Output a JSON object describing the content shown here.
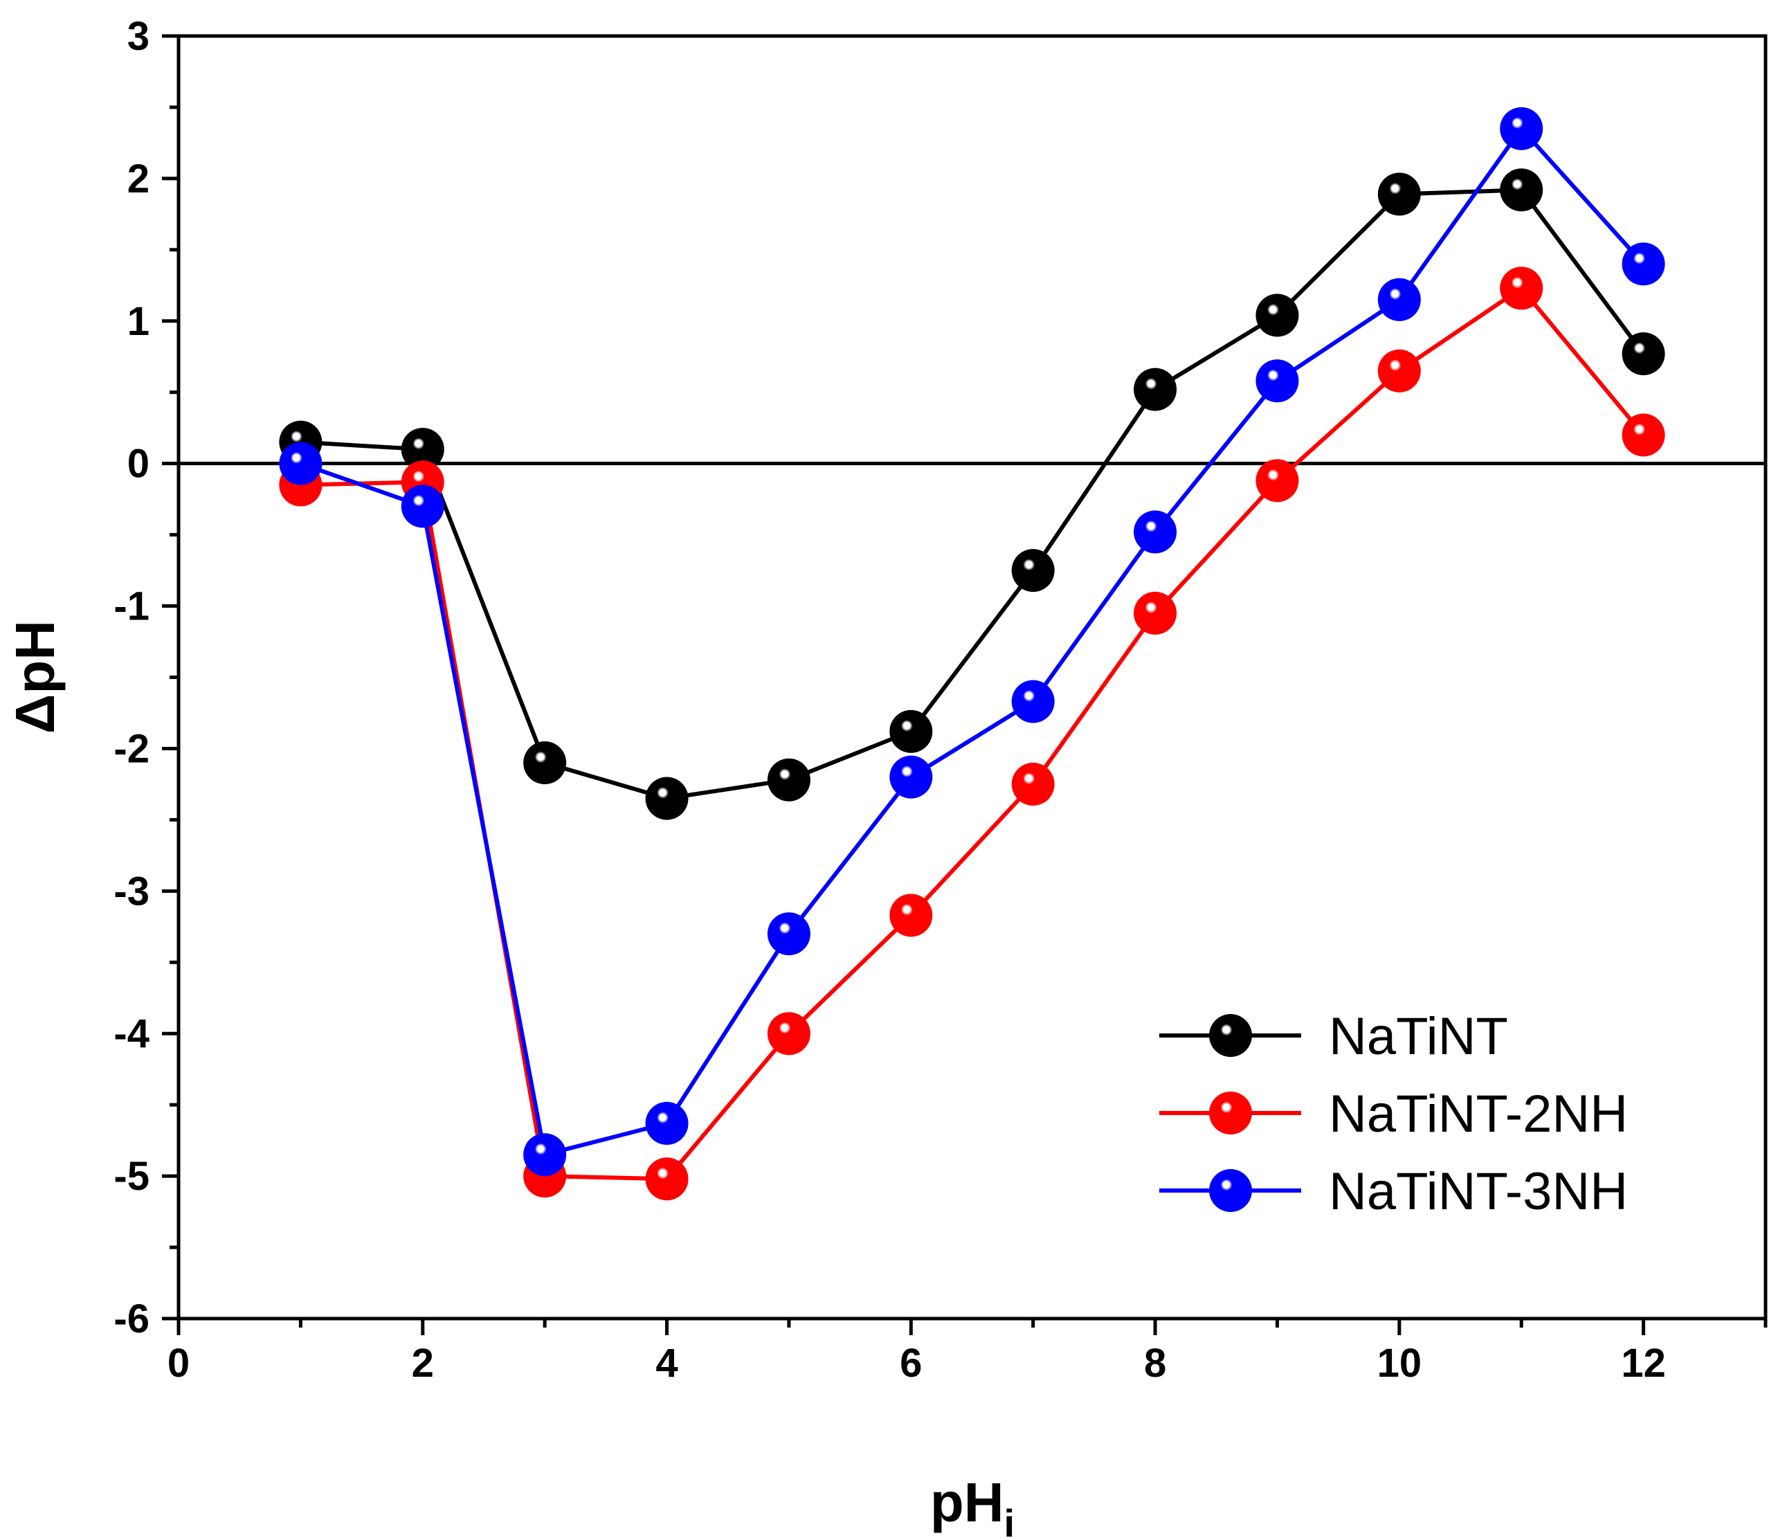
{
  "chart_data": {
    "type": "line",
    "title": "",
    "xlabel": "pH",
    "xlabel_subscript": "i",
    "ylabel": "ΔpH",
    "xlim": [
      0,
      13
    ],
    "ylim": [
      -6,
      3
    ],
    "xticks": [
      0,
      2,
      4,
      6,
      8,
      10,
      12
    ],
    "xtick_labels": [
      "0",
      "2",
      "4",
      "6",
      "8",
      "10",
      "12"
    ],
    "yticks": [
      3,
      2,
      1,
      0,
      -1,
      -2,
      -3,
      -4,
      -5,
      -6
    ],
    "ytick_labels": [
      "3",
      "2",
      "1",
      "0",
      "-1",
      "-2",
      "-3",
      "-4",
      "-5",
      "-6"
    ],
    "reference_line_y": 0,
    "grid": false,
    "legend_position": "bottom-right",
    "x": [
      1,
      2,
      3,
      4,
      5,
      6,
      7,
      8,
      9,
      10,
      11,
      12
    ],
    "series": [
      {
        "name": "NaTiNT",
        "color": "#000000",
        "values": [
          0.15,
          0.1,
          -2.1,
          -2.35,
          -2.22,
          -1.88,
          -0.75,
          0.52,
          1.04,
          1.89,
          1.92,
          0.77
        ]
      },
      {
        "name": "NaTiNT-2NH",
        "color": "#ff0000",
        "values": [
          -0.15,
          -0.13,
          -5.0,
          -5.02,
          -4.0,
          -3.17,
          -2.25,
          -1.05,
          -0.12,
          0.65,
          1.23,
          0.2
        ]
      },
      {
        "name": "NaTiNT-3NH",
        "color": "#0000ff",
        "values": [
          0.0,
          -0.3,
          -4.85,
          -4.63,
          -3.3,
          -2.2,
          -1.67,
          -0.48,
          0.58,
          1.15,
          2.35,
          1.4
        ]
      }
    ]
  }
}
